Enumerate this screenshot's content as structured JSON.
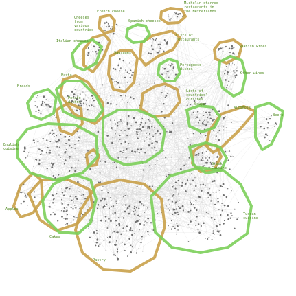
{
  "colors": {
    "green_hull": "#7ccf5a",
    "orange_hull": "#c9a14a",
    "label_text": "#4f8a1f",
    "node": "#6f6f6f",
    "edge": "#cfcfcf"
  },
  "labels": [
    {
      "id": "french-cheese",
      "lines": [
        "French cheese"
      ]
    },
    {
      "id": "cheeses-various",
      "lines": [
        "Cheeses",
        "from",
        "various",
        "countries"
      ]
    },
    {
      "id": "spanish-cheeses",
      "lines": [
        "Spanish cheeses"
      ]
    },
    {
      "id": "michelin",
      "lines": [
        "Michelin starred",
        "restaurants in",
        "the Netherlands"
      ]
    },
    {
      "id": "italian-cheeses",
      "lines": [
        "Italian cheeses"
      ]
    },
    {
      "id": "lists-restaurants",
      "lines": [
        "Lists of",
        "restaurants"
      ]
    },
    {
      "id": "sausages",
      "lines": [
        "Sausages"
      ]
    },
    {
      "id": "spanish-wines",
      "lines": [
        "Spanish wines"
      ]
    },
    {
      "id": "portuguese-dishes",
      "lines": [
        "Portuguese",
        "dishes"
      ]
    },
    {
      "id": "other-wines",
      "lines": [
        "Other wines"
      ]
    },
    {
      "id": "pasta",
      "lines": [
        "Pasta"
      ]
    },
    {
      "id": "lists-country-cuisines",
      "lines": [
        "Lists of",
        "countries'",
        "cuisines"
      ]
    },
    {
      "id": "breads",
      "lines": [
        "Breads"
      ]
    },
    {
      "id": "potato-dishes",
      "lines": [
        "Potato",
        "dishes"
      ]
    },
    {
      "id": "soups",
      "lines": [
        "Soups"
      ]
    },
    {
      "id": "alcohols",
      "lines": [
        "Alcohols"
      ]
    },
    {
      "id": "beers",
      "lines": [
        "Beers"
      ]
    },
    {
      "id": "english-cuisine",
      "lines": [
        "English",
        "cuisine"
      ]
    },
    {
      "id": "greek-cuisine",
      "lines": [
        "Greek",
        "Cuisine"
      ]
    },
    {
      "id": "apples",
      "lines": [
        "Apples"
      ]
    },
    {
      "id": "tuscan-cuisine",
      "lines": [
        "Tuscan",
        "cuisine"
      ]
    },
    {
      "id": "cakes",
      "lines": [
        "Cakes"
      ]
    },
    {
      "id": "pastry",
      "lines": [
        "Pastry"
      ]
    }
  ]
}
